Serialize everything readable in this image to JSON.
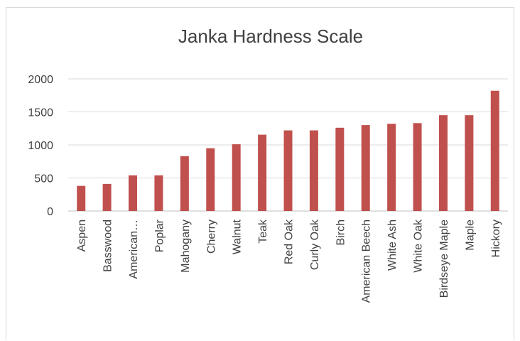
{
  "chart_data": {
    "type": "bar",
    "title": "Janka Hardness Scale",
    "categories": [
      "Aspen",
      "Basswood",
      "American…",
      "Poplar",
      "Mahogany",
      "Cherry",
      "Walnut",
      "Teak",
      "Red Oak",
      "Curly Oak",
      "Birch",
      "American Beech",
      "White Ash",
      "White Oak",
      "Birdseye Maple",
      "Maple",
      "Hickory"
    ],
    "values": [
      380,
      410,
      540,
      540,
      830,
      950,
      1010,
      1155,
      1220,
      1220,
      1260,
      1300,
      1320,
      1330,
      1450,
      1450,
      1820
    ],
    "ylim": [
      0,
      2000
    ],
    "yticks": [
      0,
      500,
      1000,
      1500,
      2000
    ],
    "xlabel": "",
    "ylabel": "",
    "grid": true,
    "legend": "none",
    "bar_color": "#c0504d"
  }
}
